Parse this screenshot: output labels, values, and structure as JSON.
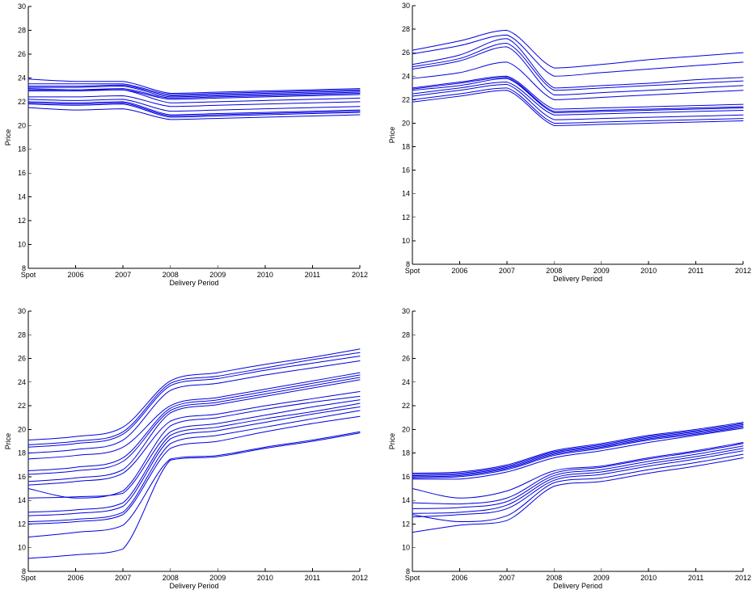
{
  "colors": {
    "series": "#0000dd",
    "axis": "#000000"
  },
  "chart_data": [
    {
      "type": "line",
      "title": "",
      "xlabel": "Delivery Period",
      "ylabel": "Price",
      "categories": [
        "Spot",
        "2006",
        "2007",
        "2008",
        "2009",
        "2010",
        "2011",
        "2012"
      ],
      "ylim": [
        8,
        30
      ],
      "yticks": [
        8,
        10,
        12,
        14,
        16,
        18,
        20,
        22,
        24,
        26,
        28,
        30
      ],
      "grid": false,
      "series": [
        {
          "values": [
            23.9,
            23.7,
            23.7,
            22.7,
            22.8,
            22.9,
            23.0,
            23.1
          ]
        },
        {
          "values": [
            23.5,
            23.5,
            23.5,
            22.6,
            22.7,
            22.8,
            22.9,
            23.0
          ]
        },
        {
          "values": [
            23.3,
            23.3,
            23.4,
            22.5,
            22.6,
            22.7,
            22.8,
            22.9
          ]
        },
        {
          "values": [
            23.2,
            23.2,
            23.3,
            22.4,
            22.5,
            22.6,
            22.7,
            22.8
          ]
        },
        {
          "values": [
            23.0,
            23.0,
            23.1,
            22.3,
            22.4,
            22.5,
            22.6,
            22.7
          ]
        },
        {
          "values": [
            22.9,
            22.9,
            23.0,
            22.2,
            22.3,
            22.4,
            22.5,
            22.6
          ]
        },
        {
          "values": [
            23.1,
            23.0,
            23.0,
            21.9,
            22.0,
            22.1,
            22.2,
            22.3
          ]
        },
        {
          "values": [
            22.4,
            22.4,
            22.5,
            21.6,
            21.7,
            21.8,
            21.9,
            22.0
          ]
        },
        {
          "values": [
            22.2,
            22.1,
            22.2,
            21.2,
            21.3,
            21.4,
            21.5,
            21.6
          ]
        },
        {
          "values": [
            22.0,
            21.9,
            22.0,
            20.9,
            21.0,
            21.1,
            21.2,
            21.3
          ]
        },
        {
          "values": [
            21.9,
            21.8,
            21.9,
            20.8,
            20.9,
            21.0,
            21.1,
            21.2
          ]
        },
        {
          "values": [
            21.8,
            21.7,
            21.8,
            20.7,
            20.8,
            20.9,
            21.0,
            21.1
          ]
        },
        {
          "values": [
            21.5,
            21.3,
            21.4,
            20.5,
            20.6,
            20.7,
            20.8,
            20.9
          ]
        }
      ]
    },
    {
      "type": "line",
      "title": "",
      "xlabel": "Delivery Period",
      "ylabel": "Price",
      "categories": [
        "Spot",
        "2006",
        "2007",
        "2008",
        "2009",
        "2010",
        "2011",
        "2012"
      ],
      "ylim": [
        8,
        30
      ],
      "yticks": [
        8,
        10,
        12,
        14,
        16,
        18,
        20,
        22,
        24,
        26,
        28,
        30
      ],
      "grid": false,
      "series": [
        {
          "values": [
            26.2,
            27.0,
            27.9,
            24.7,
            25.0,
            25.4,
            25.7,
            26.0
          ]
        },
        {
          "values": [
            25.9,
            26.6,
            27.5,
            24.0,
            24.3,
            24.6,
            24.9,
            25.2
          ]
        },
        {
          "values": [
            25.0,
            25.8,
            27.2,
            23.0,
            23.2,
            23.4,
            23.7,
            23.9
          ]
        },
        {
          "values": [
            24.8,
            25.5,
            26.8,
            22.8,
            23.0,
            23.2,
            23.4,
            23.6
          ]
        },
        {
          "values": [
            24.6,
            25.3,
            26.5,
            22.4,
            22.6,
            22.8,
            23.0,
            23.2
          ]
        },
        {
          "values": [
            23.8,
            24.3,
            25.2,
            22.0,
            22.2,
            22.4,
            22.6,
            22.8
          ]
        },
        {
          "values": [
            23.0,
            23.5,
            24.0,
            21.2,
            21.3,
            21.4,
            21.5,
            21.6
          ]
        },
        {
          "values": [
            22.9,
            23.4,
            23.9,
            21.0,
            21.1,
            21.2,
            21.3,
            21.4
          ]
        },
        {
          "values": [
            22.8,
            23.2,
            23.8,
            20.9,
            21.0,
            21.1,
            21.2,
            21.3
          ]
        },
        {
          "values": [
            22.5,
            23.0,
            23.5,
            20.7,
            20.8,
            20.9,
            21.0,
            21.1
          ]
        },
        {
          "values": [
            22.3,
            22.8,
            23.3,
            20.3,
            20.4,
            20.5,
            20.6,
            20.7
          ]
        },
        {
          "values": [
            22.0,
            22.5,
            23.0,
            20.0,
            20.1,
            20.2,
            20.3,
            20.4
          ]
        },
        {
          "values": [
            21.8,
            22.3,
            22.8,
            19.8,
            19.9,
            20.0,
            20.1,
            20.2
          ]
        }
      ]
    },
    {
      "type": "line",
      "title": "",
      "xlabel": "Delivery Period",
      "ylabel": "Price",
      "categories": [
        "Spot",
        "2006",
        "2007",
        "2008",
        "2009",
        "2010",
        "2011",
        "2012"
      ],
      "ylim": [
        8,
        30
      ],
      "yticks": [
        8,
        10,
        12,
        14,
        16,
        18,
        20,
        22,
        24,
        26,
        28,
        30
      ],
      "grid": false,
      "series": [
        {
          "values": [
            19.1,
            19.4,
            20.2,
            24.1,
            24.8,
            25.5,
            26.1,
            26.8
          ]
        },
        {
          "values": [
            18.7,
            19.0,
            19.8,
            23.9,
            24.5,
            25.2,
            25.9,
            26.5
          ]
        },
        {
          "values": [
            18.5,
            18.8,
            19.6,
            23.7,
            24.3,
            25.0,
            25.6,
            26.2
          ]
        },
        {
          "values": [
            18.0,
            18.3,
            19.1,
            23.3,
            23.9,
            24.6,
            25.2,
            25.8
          ]
        },
        {
          "values": [
            17.5,
            17.8,
            18.5,
            22.0,
            22.7,
            23.4,
            24.1,
            24.8
          ]
        },
        {
          "values": [
            16.5,
            16.8,
            17.6,
            21.8,
            22.5,
            23.2,
            23.9,
            24.6
          ]
        },
        {
          "values": [
            16.2,
            16.5,
            17.3,
            21.6,
            22.3,
            23.0,
            23.7,
            24.4
          ]
        },
        {
          "values": [
            15.6,
            15.9,
            16.6,
            21.4,
            22.1,
            22.8,
            23.5,
            24.2
          ]
        },
        {
          "values": [
            15.3,
            15.6,
            16.3,
            20.7,
            21.3,
            22.0,
            22.6,
            23.2
          ]
        },
        {
          "values": [
            15.0,
            14.2,
            14.8,
            20.3,
            21.0,
            21.7,
            22.3,
            22.8
          ]
        },
        {
          "values": [
            14.2,
            14.3,
            14.6,
            19.8,
            20.5,
            21.2,
            21.9,
            22.5
          ]
        },
        {
          "values": [
            13.0,
            13.2,
            13.8,
            19.5,
            20.2,
            20.9,
            21.5,
            22.2
          ]
        },
        {
          "values": [
            12.7,
            12.9,
            13.5,
            19.2,
            19.9,
            20.6,
            21.3,
            21.9
          ]
        },
        {
          "values": [
            12.2,
            12.4,
            13.0,
            18.8,
            19.5,
            20.2,
            20.9,
            21.6
          ]
        },
        {
          "values": [
            12.0,
            12.2,
            12.8,
            18.4,
            19.0,
            19.8,
            20.5,
            21.1
          ]
        },
        {
          "values": [
            10.9,
            11.3,
            11.9,
            17.5,
            17.8,
            18.5,
            19.1,
            19.8
          ]
        },
        {
          "values": [
            9.1,
            9.4,
            9.9,
            17.4,
            17.7,
            18.4,
            19.0,
            19.7
          ]
        }
      ]
    },
    {
      "type": "line",
      "title": "",
      "xlabel": "Delivery Period",
      "ylabel": "Price",
      "categories": [
        "Spot",
        "2006",
        "2007",
        "2008",
        "2009",
        "2010",
        "2011",
        "2012"
      ],
      "ylim": [
        8,
        30
      ],
      "yticks": [
        8,
        10,
        12,
        14,
        16,
        18,
        20,
        22,
        24,
        26,
        28,
        30
      ],
      "grid": false,
      "series": [
        {
          "values": [
            16.3,
            16.4,
            17.0,
            18.2,
            18.8,
            19.5,
            20.0,
            20.6
          ]
        },
        {
          "values": [
            16.2,
            16.3,
            16.9,
            18.1,
            18.7,
            19.4,
            19.9,
            20.5
          ]
        },
        {
          "values": [
            16.1,
            16.2,
            16.8,
            18.0,
            18.6,
            19.3,
            19.8,
            20.4
          ]
        },
        {
          "values": [
            16.0,
            16.1,
            16.7,
            17.9,
            18.5,
            19.2,
            19.7,
            20.3
          ]
        },
        {
          "values": [
            15.9,
            16.0,
            16.6,
            17.8,
            18.4,
            19.1,
            19.6,
            20.2
          ]
        },
        {
          "values": [
            15.8,
            15.8,
            16.4,
            17.6,
            18.2,
            18.9,
            19.5,
            20.1
          ]
        },
        {
          "values": [
            15.0,
            14.2,
            14.8,
            16.5,
            16.9,
            17.6,
            18.2,
            18.9
          ]
        },
        {
          "values": [
            13.8,
            13.7,
            14.2,
            16.3,
            16.8,
            17.5,
            18.1,
            18.8
          ]
        },
        {
          "values": [
            13.3,
            13.4,
            13.9,
            16.1,
            16.6,
            17.3,
            17.9,
            18.6
          ]
        },
        {
          "values": [
            12.9,
            13.0,
            13.6,
            15.9,
            16.4,
            17.1,
            17.7,
            18.4
          ]
        },
        {
          "values": [
            12.6,
            12.8,
            13.3,
            15.7,
            16.2,
            16.9,
            17.5,
            18.2
          ]
        },
        {
          "values": [
            12.8,
            12.2,
            12.7,
            15.5,
            15.9,
            16.6,
            17.2,
            17.9
          ]
        },
        {
          "values": [
            11.3,
            11.9,
            12.3,
            15.2,
            15.6,
            16.3,
            16.9,
            17.6
          ]
        }
      ]
    }
  ]
}
